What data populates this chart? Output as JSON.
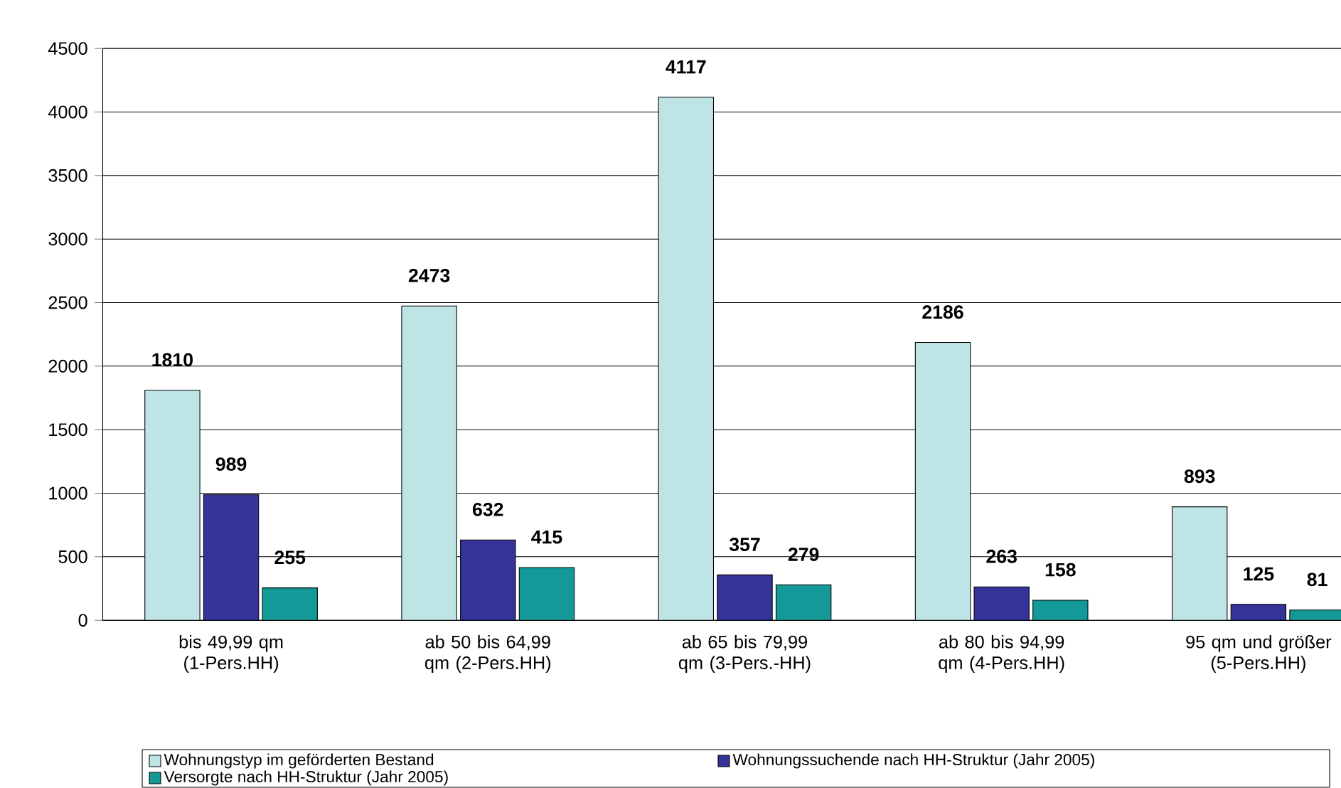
{
  "chart_data": {
    "type": "bar",
    "categories": [
      "bis 49,99 qm (1-Pers.HH)",
      "ab 50 bis 64,99 qm (2-Pers.HH)",
      "ab 65 bis 79,99 qm (3-Pers.-HH)",
      "ab 80 bis 94,99 qm (4-Pers.HH)",
      "95 qm und größer (5-Pers.HH)"
    ],
    "series": [
      {
        "name": "Wohnungstyp im geförderten Bestand",
        "color": "#bfe4e6",
        "values": [
          1810,
          2473,
          4117,
          2186,
          893
        ],
        "value_labels": [
          "1810",
          "2473",
          "4117",
          "2186",
          "893"
        ]
      },
      {
        "name": "Wohnungssuchende nach HH-Struktur (Jahr 2005)",
        "color": "#333399",
        "values": [
          989,
          632,
          357,
          263,
          125
        ],
        "value_labels": [
          "989",
          "632",
          "357",
          "263",
          "125"
        ]
      },
      {
        "name": "Versorgte nach HH-Struktur (Jahr 2005)",
        "color": "#139a98",
        "values": [
          255,
          415,
          279,
          158,
          81
        ],
        "value_labels": [
          "255",
          "415",
          "279",
          "158",
          "81"
        ]
      }
    ],
    "ylim": [
      0,
      4500
    ],
    "yticks": [
      0,
      500,
      1000,
      1500,
      2000,
      2500,
      3000,
      3500,
      4000,
      4500
    ],
    "grid": "y",
    "legend": "bottom"
  }
}
